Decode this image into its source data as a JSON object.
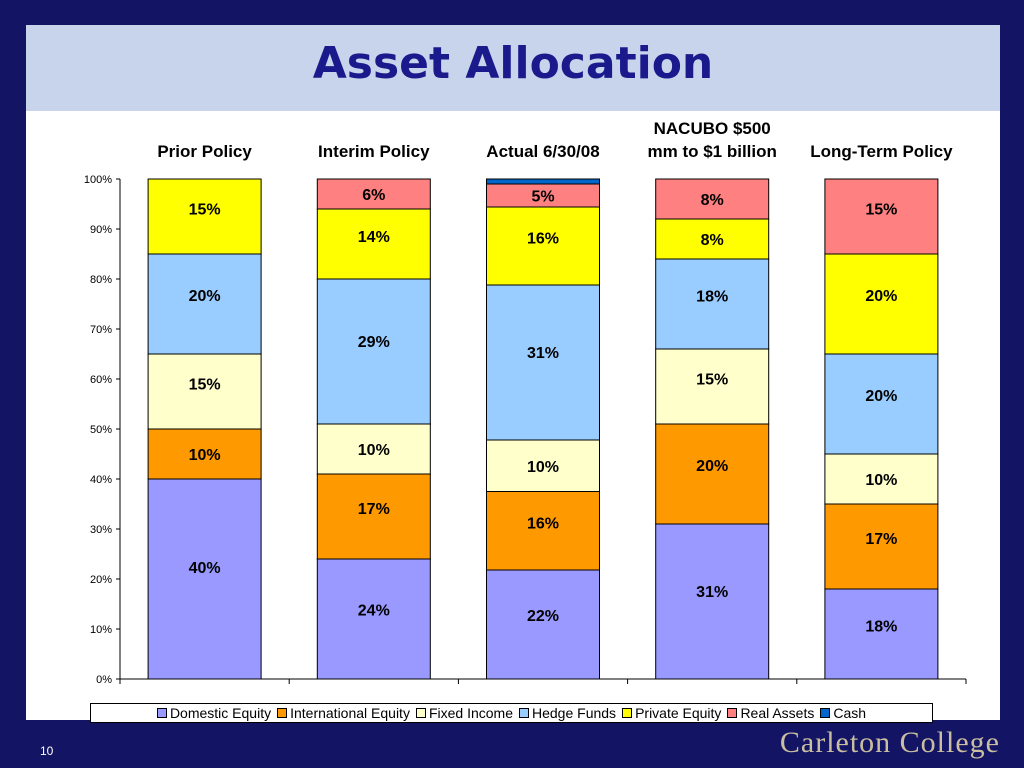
{
  "slide": {
    "title": "Asset Allocation",
    "number": "10",
    "footer": "Carleton College"
  },
  "chart_data": {
    "type": "bar",
    "stacked": true,
    "categories": [
      "Prior Policy",
      "Interim Policy",
      "Actual 6/30/08",
      "NACUBO $500 mm to $1 billion",
      "Long-Term Policy"
    ],
    "ylim": [
      0,
      100
    ],
    "y_ticks": [
      "0%",
      "10%",
      "20%",
      "30%",
      "40%",
      "50%",
      "60%",
      "70%",
      "80%",
      "90%",
      "100%"
    ],
    "grid": false,
    "legend_position": "bottom",
    "series": [
      {
        "name": "Domestic Equity",
        "color": "#9999ff",
        "values": [
          40,
          24,
          21.8,
          31,
          18
        ],
        "labels": [
          "40%",
          "24%",
          "22%",
          "31%",
          "18%"
        ]
      },
      {
        "name": "International Equity",
        "color": "#ff9900",
        "values": [
          10,
          17,
          15.7,
          20,
          17
        ],
        "labels": [
          "10%",
          "17%",
          "16%",
          "20%",
          "17%"
        ]
      },
      {
        "name": "Fixed Income",
        "color": "#ffffcc",
        "values": [
          15,
          10,
          10.3,
          15,
          10
        ],
        "labels": [
          "15%",
          "10%",
          "10%",
          "15%",
          "10%"
        ]
      },
      {
        "name": "Hedge Funds",
        "color": "#99ccff",
        "values": [
          20,
          29,
          31,
          18,
          20
        ],
        "labels": [
          "20%",
          "29%",
          "31%",
          "18%",
          "20%"
        ]
      },
      {
        "name": "Private Equity",
        "color": "#ffff00",
        "values": [
          15,
          14,
          15.6,
          8,
          20
        ],
        "labels": [
          "15%",
          "14%",
          "16%",
          "8%",
          "20%"
        ]
      },
      {
        "name": "Real Assets",
        "color": "#ff8080",
        "values": [
          0,
          6,
          4.6,
          8,
          15
        ],
        "labels": [
          "",
          "6%",
          "5%",
          "8%",
          "15%"
        ]
      },
      {
        "name": "Cash",
        "color": "#0066cc",
        "values": [
          0,
          0,
          1,
          0,
          0
        ],
        "labels": [
          "",
          "",
          "",
          "",
          ""
        ]
      }
    ]
  }
}
